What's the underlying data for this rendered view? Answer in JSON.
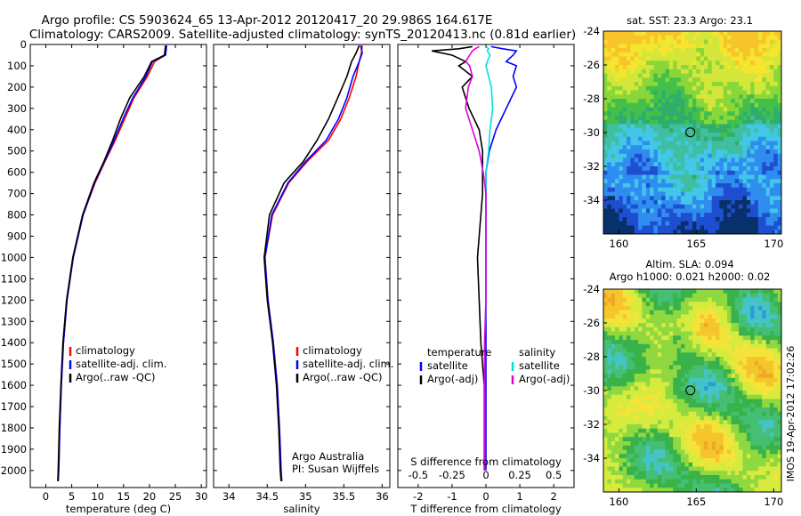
{
  "header": {
    "line1": "Argo profile: CS 5903624_65 13-Apr-2012 20120417_20 29.986S 164.617E",
    "line2": "Climatology: CARS2009. Satellite-adjusted climatology: synTS_20120413.nc (0.81d earlier)"
  },
  "colors": {
    "climatology": "#ff0000",
    "satellite": "#0000ff",
    "argo": "#000000",
    "salinity_satellite": "#00e0e0",
    "salinity_argo": "#e000e0"
  },
  "chart_data": [
    {
      "type": "line",
      "xlabel": "temperature (deg C)",
      "xlim": [
        -3,
        31
      ],
      "xticks": [
        0,
        5,
        10,
        15,
        20,
        25,
        30
      ],
      "ylim": [
        2080,
        0
      ],
      "yticks": [
        0,
        100,
        200,
        300,
        400,
        500,
        600,
        700,
        800,
        900,
        1000,
        1100,
        1200,
        1300,
        1400,
        1500,
        1600,
        1700,
        1800,
        1900,
        2000
      ],
      "legend": [
        "climatology",
        "satellite-adj. clim.",
        "Argo(..raw -QC)"
      ],
      "depth": [
        5,
        50,
        80,
        150,
        250,
        350,
        450,
        550,
        650,
        800,
        1000,
        1200,
        1400,
        1600,
        1800,
        2000,
        2050
      ],
      "series": [
        {
          "name": "climatology",
          "values": [
            23.2,
            23.0,
            21.0,
            19.6,
            17.0,
            15.2,
            13.4,
            11.4,
            9.5,
            7.2,
            5.3,
            4.1,
            3.4,
            3.0,
            2.7,
            2.5,
            2.4
          ]
        },
        {
          "name": "satellite-adj. clim.",
          "values": [
            23.3,
            23.1,
            20.6,
            19.3,
            16.8,
            14.9,
            13.2,
            11.3,
            9.4,
            7.2,
            5.3,
            4.1,
            3.4,
            3.0,
            2.7,
            2.5,
            2.4
          ]
        },
        {
          "name": "Argo(..raw -QC)",
          "values": [
            23.1,
            22.9,
            20.4,
            19.0,
            16.2,
            14.4,
            12.9,
            11.2,
            9.3,
            7.1,
            5.2,
            4.0,
            3.3,
            2.9,
            2.6,
            2.4,
            2.3
          ]
        }
      ]
    },
    {
      "type": "line",
      "xlabel": "salinity",
      "xlim": [
        33.8,
        36.1
      ],
      "xticks": [
        34,
        34.5,
        35,
        35.5,
        36
      ],
      "xticklabels": [
        "34",
        "34.5",
        "35",
        "35.5",
        "36"
      ],
      "ylim": [
        2080,
        0
      ],
      "legend": [
        "climatology",
        "satellite-adj. clim.",
        "Argo(..raw -QC)"
      ],
      "annotation": [
        "Argo Australia",
        "PI: Susan Wijffels"
      ],
      "depth": [
        5,
        40,
        80,
        150,
        250,
        350,
        450,
        550,
        650,
        800,
        1000,
        1200,
        1400,
        1600,
        1800,
        2000,
        2050
      ],
      "series": [
        {
          "name": "climatology",
          "values": [
            35.74,
            35.73,
            35.7,
            35.66,
            35.57,
            35.46,
            35.3,
            35.02,
            34.78,
            34.57,
            34.47,
            34.51,
            34.58,
            34.63,
            34.66,
            34.68,
            34.69
          ]
        },
        {
          "name": "satellite-adj. clim.",
          "values": [
            35.72,
            35.74,
            35.7,
            35.62,
            35.54,
            35.43,
            35.27,
            35.0,
            34.77,
            34.56,
            34.47,
            34.51,
            34.58,
            34.63,
            34.66,
            34.68,
            34.69
          ]
        },
        {
          "name": "Argo(..raw -QC)",
          "values": [
            35.7,
            35.66,
            35.6,
            35.54,
            35.42,
            35.3,
            35.15,
            34.97,
            34.72,
            34.53,
            34.46,
            34.5,
            34.57,
            34.62,
            34.65,
            34.67,
            34.68
          ]
        }
      ]
    },
    {
      "type": "line",
      "xlabel": "T difference from climatology",
      "xlabel_top": "S difference from climatology",
      "xlim_T": [
        -2.6,
        2.6
      ],
      "xticks_T": [
        -2,
        -1,
        0,
        1,
        2
      ],
      "xticks_S": [
        -0.5,
        -0.25,
        0,
        0.25,
        0.5
      ],
      "xticklabels_S": [
        "-0.5",
        "-0.25",
        "0",
        "0.25",
        "0.5"
      ],
      "ylim": [
        2080,
        0
      ],
      "legend_temperature": {
        "title": "temperature",
        "items": [
          "satellite",
          "Argo(-adj)"
        ]
      },
      "legend_salinity": {
        "title": "salinity",
        "items": [
          "satellite",
          "Argo(-adj)"
        ]
      },
      "depth": [
        10,
        20,
        30,
        50,
        80,
        100,
        150,
        200,
        300,
        400,
        500,
        600,
        700,
        900,
        1000,
        1200,
        1400,
        1600,
        1800,
        2000
      ],
      "series": [
        {
          "name": "temperature satellite",
          "values": [
            0.15,
            0.5,
            0.9,
            0.8,
            0.6,
            0.9,
            0.8,
            0.9,
            0.6,
            0.3,
            0.1,
            0.0,
            0.0,
            0.0,
            0.0,
            0.0,
            0.0,
            0.0,
            0.0,
            0.0
          ]
        },
        {
          "name": "temperature Argo(-adj)",
          "values": [
            -0.4,
            -0.8,
            -1.6,
            -1.0,
            -0.6,
            -0.8,
            -0.4,
            -0.7,
            -0.5,
            -0.2,
            -0.1,
            -0.1,
            -0.1,
            -0.2,
            -0.25,
            -0.2,
            -0.15,
            -0.05,
            -0.05,
            -0.05
          ]
        },
        {
          "name": "salinity satellite",
          "values": [
            0.0,
            0.02,
            0.01,
            0.03,
            0.01,
            0.0,
            0.02,
            0.04,
            0.05,
            0.03,
            0.02,
            0.0,
            0.0,
            0.0,
            0.0,
            0.0,
            -0.01,
            -0.01,
            -0.01,
            -0.01
          ]
        },
        {
          "name": "salinity Argo(-adj)",
          "values": [
            -0.05,
            -0.08,
            -0.1,
            -0.12,
            -0.15,
            -0.12,
            -0.1,
            -0.13,
            -0.15,
            -0.1,
            -0.05,
            -0.02,
            0.0,
            0.0,
            0.0,
            0.0,
            -0.01,
            -0.01,
            -0.01,
            -0.01
          ]
        }
      ]
    },
    {
      "type": "heatmap",
      "title": "sat. SST: 23.3 Argo: 23.1",
      "xlim": [
        159,
        170.5
      ],
      "ylim": [
        -36,
        -24
      ],
      "xticks": [
        160,
        165,
        170
      ],
      "yticks": [
        -34,
        -32,
        -30,
        -28,
        -26,
        -24
      ],
      "marker": {
        "lon": 164.617,
        "lat": -29.986
      }
    },
    {
      "type": "heatmap",
      "title": "Altim. SLA: 0.094",
      "subtitle": "Argo h1000: 0.021 h2000: 0.02",
      "xlim": [
        159,
        170.5
      ],
      "ylim": [
        -36,
        -24
      ],
      "xticks": [
        160,
        165,
        170
      ],
      "yticks": [
        -34,
        -32,
        -30,
        -28,
        -26,
        -24
      ],
      "marker": {
        "lon": 164.617,
        "lat": -29.986
      }
    }
  ],
  "credit": "IMOS 19-Apr-2012 17:02:26"
}
